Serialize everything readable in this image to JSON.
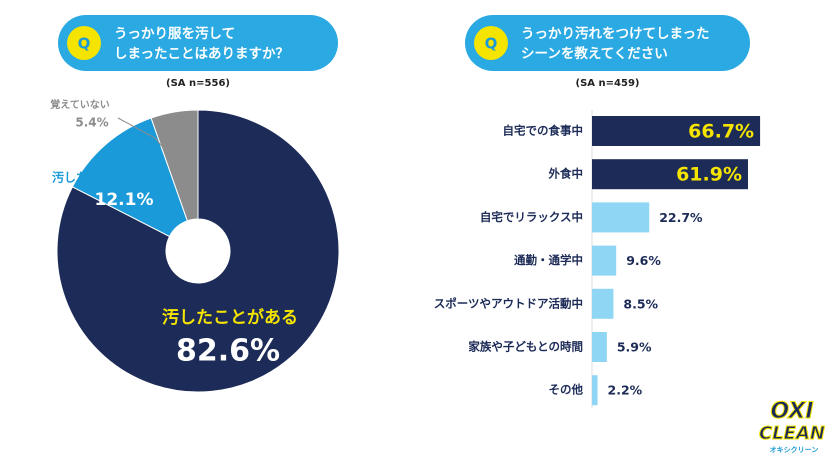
{
  "chart_data": [
    {
      "type": "pie",
      "q_label": "Q",
      "title": [
        "うっかり服を汚して",
        "しまったことはありますか？"
      ],
      "subtitle": "(SA n=556)",
      "categories": [
        "汚したことがある",
        "汚したことはない",
        "覚えていない"
      ],
      "values": [
        82.6,
        12.1,
        5.4
      ],
      "value_labels": [
        "82.6%",
        "12.1%",
        "5.4%"
      ],
      "colors": [
        "#1c2b57",
        "#1a9ad8",
        "#8c8c8c"
      ],
      "donut": true
    },
    {
      "type": "bar",
      "q_label": "Q",
      "title": [
        "うっかり汚れをつけてしまった",
        "シーンを教えてください"
      ],
      "subtitle": "(SA n=459)",
      "categories": [
        "自宅での食事中",
        "外食中",
        "自宅でリラックス中",
        "通勤・通学中",
        "スポーツやアウトドア活動中",
        "家族や子どもとの時間",
        "その他"
      ],
      "values": [
        66.7,
        61.9,
        22.7,
        9.6,
        8.5,
        5.9,
        2.2
      ],
      "value_labels": [
        "66.7%",
        "61.9%",
        "22.7%",
        "9.6%",
        "8.5%",
        "5.9%",
        "2.2%"
      ],
      "colors": [
        "#1c2b57",
        "#1c2b57",
        "#8fd6f5",
        "#8fd6f5",
        "#8fd6f5",
        "#8fd6f5",
        "#8fd6f5"
      ]
    }
  ],
  "logo": {
    "line1": "OXI",
    "line2": "CLEAN",
    "sub": "オキシクリーン"
  }
}
